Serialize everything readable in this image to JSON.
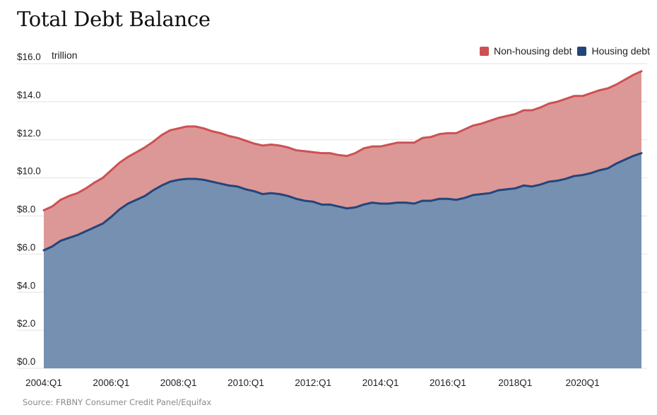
{
  "title": "Total Debt Balance",
  "unit_label": "trillion",
  "source": "Source: FRBNY Consumer Credit Panel/Equifax",
  "colors": {
    "non_housing_fill": "#dc9896",
    "non_housing_line": "#cd5153",
    "housing_fill": "#7690b1",
    "housing_line": "#22467c",
    "non_housing_swatch": "#cd5153",
    "housing_swatch": "#22467c",
    "grid": "#e3e3e3"
  },
  "legend": [
    {
      "name": "Non-housing debt",
      "color": "#cd5153"
    },
    {
      "name": "Housing debt",
      "color": "#22467c"
    }
  ],
  "chart_data": {
    "type": "area",
    "stacked": true,
    "title": "Total Debt Balance",
    "ylabel": "trillion",
    "ylim": [
      0,
      16
    ],
    "grid": true,
    "legend_position": "top-right",
    "y_ticks": [
      "$0.0",
      "$2.0",
      "$4.0",
      "$6.0",
      "$8.0",
      "$10.0",
      "$12.0",
      "$14.0",
      "$16.0"
    ],
    "x_ticks": [
      "2004:Q1",
      "2006:Q1",
      "2008:Q1",
      "2010:Q1",
      "2012:Q1",
      "2014:Q1",
      "2016:Q1",
      "2018Q1",
      "2020Q1"
    ],
    "x_start": "2004:Q1",
    "x_end": "2021:Q4",
    "series": [
      {
        "name": "Housing debt",
        "values": [
          6.2,
          6.4,
          6.7,
          6.85,
          7.0,
          7.2,
          7.4,
          7.6,
          7.95,
          8.35,
          8.65,
          8.85,
          9.05,
          9.35,
          9.6,
          9.8,
          9.9,
          9.95,
          9.95,
          9.9,
          9.8,
          9.7,
          9.6,
          9.55,
          9.4,
          9.3,
          9.15,
          9.2,
          9.15,
          9.05,
          8.9,
          8.8,
          8.75,
          8.6,
          8.6,
          8.5,
          8.4,
          8.45,
          8.6,
          8.7,
          8.65,
          8.65,
          8.7,
          8.7,
          8.65,
          8.8,
          8.8,
          8.9,
          8.9,
          8.85,
          8.95,
          9.1,
          9.15,
          9.2,
          9.35,
          9.4,
          9.45,
          9.6,
          9.55,
          9.65,
          9.8,
          9.85,
          9.95,
          10.1,
          10.15,
          10.25,
          10.4,
          10.5,
          10.75,
          10.95,
          11.15,
          11.3
        ]
      },
      {
        "name": "Non-housing debt",
        "values": [
          2.1,
          2.1,
          2.15,
          2.2,
          2.2,
          2.25,
          2.35,
          2.4,
          2.45,
          2.45,
          2.45,
          2.5,
          2.55,
          2.55,
          2.65,
          2.7,
          2.7,
          2.75,
          2.75,
          2.7,
          2.65,
          2.65,
          2.6,
          2.55,
          2.55,
          2.5,
          2.55,
          2.55,
          2.55,
          2.55,
          2.55,
          2.6,
          2.6,
          2.7,
          2.7,
          2.7,
          2.75,
          2.85,
          2.95,
          2.95,
          3.0,
          3.1,
          3.15,
          3.15,
          3.2,
          3.3,
          3.35,
          3.4,
          3.45,
          3.5,
          3.6,
          3.65,
          3.7,
          3.8,
          3.8,
          3.85,
          3.9,
          3.95,
          4.0,
          4.05,
          4.1,
          4.15,
          4.2,
          4.2,
          4.15,
          4.2,
          4.2,
          4.2,
          4.15,
          4.2,
          4.25,
          4.3
        ]
      }
    ]
  }
}
